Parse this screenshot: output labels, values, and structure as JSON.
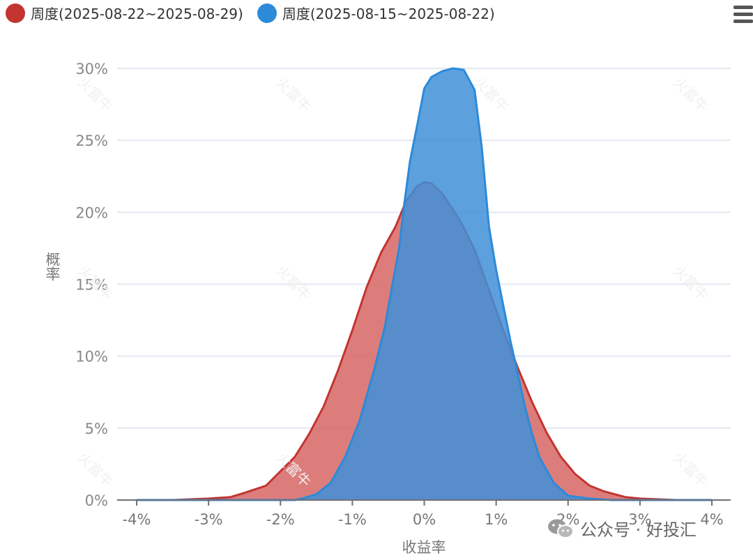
{
  "legend": [
    {
      "label": "周度(2025-08-22~2025-08-29)",
      "color": "#c23531"
    },
    {
      "label": "周度(2025-08-15~2025-08-22)",
      "color": "#2d8ad8"
    }
  ],
  "watermark_text": "火富牛",
  "credit": {
    "text": "公众号 · 好投汇",
    "icon": "wechat-icon"
  },
  "menu_icon": "hamburger-menu-icon",
  "chart_data": {
    "type": "area",
    "xlabel": "收益率",
    "ylabel": "概率",
    "xlim": [
      -4,
      4
    ],
    "ylim": [
      0,
      30
    ],
    "x_ticks": [
      "-4%",
      "-3%",
      "-2%",
      "-1%",
      "0%",
      "1%",
      "2%",
      "3%",
      "4%"
    ],
    "y_ticks": [
      "0%",
      "5%",
      "10%",
      "15%",
      "20%",
      "25%",
      "30%"
    ],
    "grid": true,
    "legend_position": "top-left",
    "series": [
      {
        "name": "周度(2025-08-22~2025-08-29)",
        "color": "#c23531",
        "fill": "#d66665",
        "points": [
          [
            -4,
            0
          ],
          [
            -3.5,
            0
          ],
          [
            -3,
            0.1
          ],
          [
            -2.7,
            0.2
          ],
          [
            -2.5,
            0.5
          ],
          [
            -2.2,
            1.0
          ],
          [
            -2,
            2.0
          ],
          [
            -1.8,
            3.0
          ],
          [
            -1.6,
            4.6
          ],
          [
            -1.4,
            6.5
          ],
          [
            -1.2,
            9.0
          ],
          [
            -1,
            11.8
          ],
          [
            -0.8,
            14.8
          ],
          [
            -0.6,
            17.2
          ],
          [
            -0.4,
            19.0
          ],
          [
            -0.25,
            20.8
          ],
          [
            -0.1,
            21.8
          ],
          [
            0,
            22.1
          ],
          [
            0.1,
            22.0
          ],
          [
            0.25,
            21.3
          ],
          [
            0.5,
            19.4
          ],
          [
            0.7,
            17.4
          ],
          [
            0.9,
            14.6
          ],
          [
            1.1,
            11.8
          ],
          [
            1.3,
            9.2
          ],
          [
            1.5,
            6.8
          ],
          [
            1.7,
            4.7
          ],
          [
            1.9,
            3.0
          ],
          [
            2.1,
            1.8
          ],
          [
            2.3,
            1.0
          ],
          [
            2.5,
            0.6
          ],
          [
            2.8,
            0.2
          ],
          [
            3,
            0.1
          ],
          [
            3.5,
            0
          ],
          [
            4,
            0
          ]
        ]
      },
      {
        "name": "周度(2025-08-15~2025-08-22)",
        "color": "#2d8ad8",
        "fill": "#3f8fd8",
        "points": [
          [
            -4,
            0
          ],
          [
            -3,
            0
          ],
          [
            -2,
            0
          ],
          [
            -1.8,
            0
          ],
          [
            -1.7,
            0.1
          ],
          [
            -1.5,
            0.4
          ],
          [
            -1.3,
            1.2
          ],
          [
            -1.1,
            3.0
          ],
          [
            -0.9,
            5.5
          ],
          [
            -0.7,
            9.0
          ],
          [
            -0.55,
            12.0
          ],
          [
            -0.45,
            14.8
          ],
          [
            -0.35,
            17.5
          ],
          [
            -0.28,
            20.5
          ],
          [
            -0.2,
            23.5
          ],
          [
            -0.1,
            26.0
          ],
          [
            0,
            28.6
          ],
          [
            0.1,
            29.4
          ],
          [
            0.25,
            29.8
          ],
          [
            0.4,
            30.0
          ],
          [
            0.55,
            29.9
          ],
          [
            0.7,
            28.5
          ],
          [
            0.8,
            24.5
          ],
          [
            0.9,
            19.0
          ],
          [
            1.0,
            16.0
          ],
          [
            1.1,
            13.5
          ],
          [
            1.2,
            11.0
          ],
          [
            1.3,
            8.8
          ],
          [
            1.4,
            6.5
          ],
          [
            1.5,
            4.6
          ],
          [
            1.6,
            3.0
          ],
          [
            1.8,
            1.2
          ],
          [
            2,
            0.3
          ],
          [
            2.3,
            0.1
          ],
          [
            2.6,
            0
          ],
          [
            3,
            0
          ],
          [
            4,
            0
          ]
        ]
      }
    ]
  }
}
